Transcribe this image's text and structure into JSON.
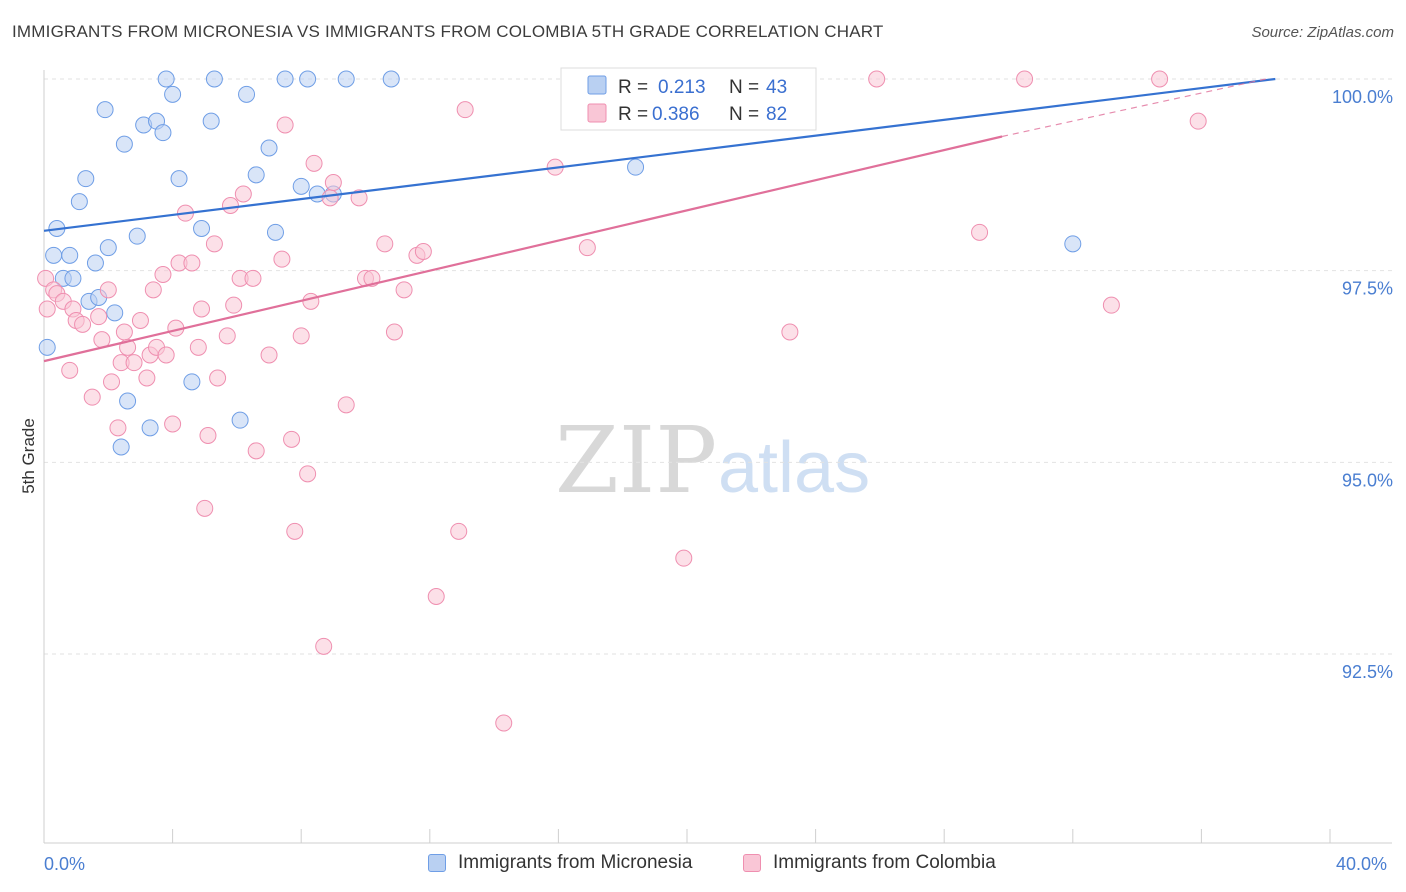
{
  "header": {
    "title": "IMMIGRANTS FROM MICRONESIA VS IMMIGRANTS FROM COLOMBIA 5TH GRADE CORRELATION CHART",
    "source": "Source: ZipAtlas.com"
  },
  "watermark": {
    "zip": "ZIP",
    "atlas": "atlas"
  },
  "legend_box": {
    "r_label": "R =",
    "n_label": "N =",
    "rows": [
      {
        "r": "0.213",
        "n": "43"
      },
      {
        "r": "0.386",
        "n": "82"
      }
    ]
  },
  "bottom_legend": [
    {
      "label": "Immigrants from Micronesia"
    },
    {
      "label": "Immigrants from Colombia"
    }
  ],
  "chart_data": {
    "type": "scatter",
    "title": "IMMIGRANTS FROM MICRONESIA VS IMMIGRANTS FROM COLOMBIA 5TH GRADE CORRELATION CHART",
    "xlabel": "",
    "ylabel": "5th Grade",
    "xlim": [
      0,
      40
    ],
    "ylim": [
      90.0,
      100.3
    ],
    "x_tick_labels": [
      "0.0%",
      "40.0%"
    ],
    "y_ticks": [
      {
        "value": 100.0,
        "label": "100.0%"
      },
      {
        "value": 97.5,
        "label": "97.5%"
      },
      {
        "value": 95.0,
        "label": "95.0%"
      },
      {
        "value": 92.5,
        "label": "92.5%"
      }
    ],
    "grid": true,
    "colors": {
      "micronesia": "#6f9ee6",
      "colombia": "#ef8fb0",
      "micronesia_line": "#3572d1",
      "colombia_line": "#e0709a"
    },
    "series": [
      {
        "name": "Immigrants from Micronesia",
        "r": 0.213,
        "n": 43,
        "trend": {
          "x0": 0,
          "y0": 98.02,
          "x1": 38.3,
          "y1": 100.0
        },
        "points": [
          [
            0.1,
            96.5
          ],
          [
            0.3,
            97.7
          ],
          [
            0.4,
            98.05
          ],
          [
            0.6,
            97.4
          ],
          [
            0.8,
            97.7
          ],
          [
            0.9,
            97.4
          ],
          [
            1.1,
            98.4
          ],
          [
            1.3,
            98.7
          ],
          [
            1.4,
            97.1
          ],
          [
            1.6,
            97.6
          ],
          [
            1.7,
            97.15
          ],
          [
            1.9,
            99.6
          ],
          [
            2.0,
            97.8
          ],
          [
            2.2,
            96.95
          ],
          [
            2.4,
            95.2
          ],
          [
            2.5,
            99.15
          ],
          [
            2.6,
            95.8
          ],
          [
            2.9,
            97.95
          ],
          [
            3.1,
            99.4
          ],
          [
            3.3,
            95.45
          ],
          [
            3.5,
            99.45
          ],
          [
            3.7,
            99.3
          ],
          [
            3.8,
            100.0
          ],
          [
            4.0,
            99.8
          ],
          [
            4.2,
            98.7
          ],
          [
            4.6,
            96.05
          ],
          [
            4.9,
            98.05
          ],
          [
            5.2,
            99.45
          ],
          [
            5.3,
            100.0
          ],
          [
            6.1,
            95.55
          ],
          [
            6.3,
            99.8
          ],
          [
            6.6,
            98.75
          ],
          [
            7.0,
            99.1
          ],
          [
            7.2,
            98.0
          ],
          [
            7.5,
            100.0
          ],
          [
            8.0,
            98.6
          ],
          [
            8.2,
            100.0
          ],
          [
            8.5,
            98.5
          ],
          [
            9.0,
            98.5
          ],
          [
            9.4,
            100.0
          ],
          [
            10.8,
            100.0
          ],
          [
            18.4,
            98.85
          ],
          [
            32.0,
            97.85
          ]
        ]
      },
      {
        "name": "Immigrants from Colombia",
        "r": 0.386,
        "n": 82,
        "trend": {
          "x0": 0,
          "y0": 96.32,
          "x1": 29.8,
          "y1": 99.25,
          "dash_to_x": 38.0,
          "dash_to_y": 100.0
        },
        "points": [
          [
            0.05,
            97.4
          ],
          [
            0.1,
            97.0
          ],
          [
            0.3,
            97.25
          ],
          [
            0.4,
            97.2
          ],
          [
            0.6,
            97.1
          ],
          [
            0.8,
            96.2
          ],
          [
            0.9,
            97.0
          ],
          [
            1.0,
            96.85
          ],
          [
            1.2,
            96.8
          ],
          [
            1.5,
            95.85
          ],
          [
            1.7,
            96.9
          ],
          [
            1.8,
            96.6
          ],
          [
            2.0,
            97.25
          ],
          [
            2.1,
            96.05
          ],
          [
            2.3,
            95.45
          ],
          [
            2.4,
            96.3
          ],
          [
            2.5,
            96.7
          ],
          [
            2.6,
            96.5
          ],
          [
            2.8,
            96.3
          ],
          [
            3.0,
            96.85
          ],
          [
            3.2,
            96.1
          ],
          [
            3.3,
            96.4
          ],
          [
            3.4,
            97.25
          ],
          [
            3.5,
            96.5
          ],
          [
            3.7,
            97.45
          ],
          [
            3.8,
            96.4
          ],
          [
            4.0,
            95.5
          ],
          [
            4.1,
            96.75
          ],
          [
            4.2,
            97.6
          ],
          [
            4.4,
            98.25
          ],
          [
            4.6,
            97.6
          ],
          [
            4.8,
            96.5
          ],
          [
            4.9,
            97.0
          ],
          [
            5.0,
            94.4
          ],
          [
            5.1,
            95.35
          ],
          [
            5.3,
            97.85
          ],
          [
            5.4,
            96.1
          ],
          [
            5.7,
            96.65
          ],
          [
            5.8,
            98.35
          ],
          [
            5.9,
            97.05
          ],
          [
            6.1,
            97.4
          ],
          [
            6.2,
            98.5
          ],
          [
            6.5,
            97.4
          ],
          [
            6.6,
            95.15
          ],
          [
            7.0,
            96.4
          ],
          [
            7.4,
            97.65
          ],
          [
            7.5,
            99.4
          ],
          [
            7.7,
            95.3
          ],
          [
            7.8,
            94.1
          ],
          [
            8.0,
            96.65
          ],
          [
            8.2,
            94.85
          ],
          [
            8.3,
            97.1
          ],
          [
            8.4,
            98.9
          ],
          [
            8.7,
            92.6
          ],
          [
            8.9,
            98.45
          ],
          [
            9.0,
            98.65
          ],
          [
            9.4,
            95.75
          ],
          [
            9.8,
            98.45
          ],
          [
            10.0,
            97.4
          ],
          [
            10.2,
            97.4
          ],
          [
            10.6,
            97.85
          ],
          [
            10.9,
            96.7
          ],
          [
            11.2,
            97.25
          ],
          [
            11.6,
            97.7
          ],
          [
            11.8,
            97.75
          ],
          [
            12.2,
            93.25
          ],
          [
            12.9,
            94.1
          ],
          [
            13.1,
            99.6
          ],
          [
            14.3,
            91.6
          ],
          [
            15.9,
            98.85
          ],
          [
            16.9,
            97.8
          ],
          [
            18.0,
            100.0
          ],
          [
            18.5,
            100.0
          ],
          [
            19.9,
            93.75
          ],
          [
            21.3,
            100.0
          ],
          [
            23.2,
            96.7
          ],
          [
            25.9,
            100.0
          ],
          [
            29.1,
            98.0
          ],
          [
            30.5,
            100.0
          ],
          [
            33.2,
            97.05
          ],
          [
            34.7,
            100.0
          ],
          [
            35.9,
            99.45
          ]
        ]
      }
    ]
  }
}
